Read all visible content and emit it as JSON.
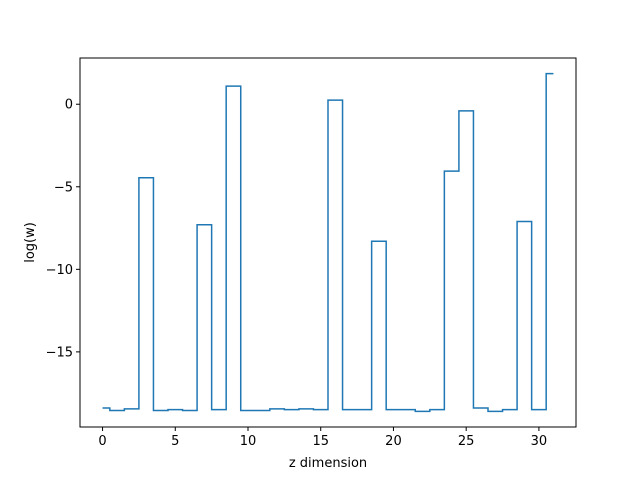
{
  "chart_data": {
    "type": "line",
    "drawstyle": "steps-mid",
    "title": "",
    "xlabel": "z dimension",
    "ylabel": "log(w)",
    "xlim": [
      -1.55,
      32.55
    ],
    "ylim": [
      -19.55,
      2.8
    ],
    "x_ticks": [
      0,
      5,
      10,
      15,
      20,
      25,
      30
    ],
    "y_ticks": [
      0,
      -5,
      -10,
      -15
    ],
    "x_tick_labels": [
      "0",
      "5",
      "10",
      "15",
      "20",
      "25",
      "30"
    ],
    "y_tick_labels": [
      "0",
      "−5",
      "−10",
      "−15"
    ],
    "grid": false,
    "legend": "none",
    "series": [
      {
        "color": "#1f77b4",
        "x": [
          0,
          1,
          2,
          3,
          4,
          5,
          6,
          7,
          8,
          9,
          10,
          11,
          12,
          13,
          14,
          15,
          16,
          17,
          18,
          19,
          20,
          21,
          22,
          23,
          24,
          25,
          26,
          27,
          28,
          29,
          30,
          31
        ],
        "values": [
          -18.4,
          -18.55,
          -18.45,
          -4.45,
          -18.55,
          -18.5,
          -18.55,
          -7.3,
          -18.5,
          1.1,
          -18.55,
          -18.55,
          -18.45,
          -18.5,
          -18.45,
          -18.5,
          0.25,
          -18.5,
          -18.5,
          -8.3,
          -18.5,
          -18.5,
          -18.6,
          -18.5,
          -4.05,
          -0.4,
          -18.4,
          -18.6,
          -18.5,
          -7.1,
          -18.5,
          1.85
        ]
      }
    ]
  }
}
